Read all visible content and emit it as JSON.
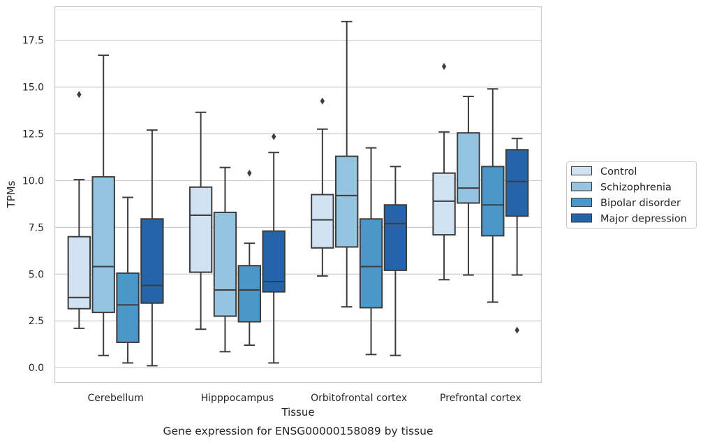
{
  "chart_data": {
    "type": "box",
    "title": "",
    "caption": "Gene expression for ENSG00000158089 by tissue",
    "xlabel": "Tissue",
    "ylabel": "TPMs",
    "ylim": [
      -0.8,
      19.3
    ],
    "yticks": [
      "0.0",
      "2.5",
      "5.0",
      "7.5",
      "10.0",
      "12.5",
      "15.0",
      "17.5"
    ],
    "ytick_values": [
      0,
      2.5,
      5,
      7.5,
      10,
      12.5,
      15,
      17.5
    ],
    "grid": "horizontal",
    "legend_position": "right",
    "categories": [
      "Cerebellum",
      "Hipppocampus",
      "Orbitofrontal cortex",
      "Prefrontal cortex"
    ],
    "series": [
      {
        "name": "Control",
        "color": "#d0e1f2",
        "boxes": [
          {
            "whislo": 2.1,
            "q1": 3.15,
            "med": 3.75,
            "q3": 7.0,
            "whishi": 10.05,
            "fliers": [
              14.6
            ]
          },
          {
            "whislo": 2.05,
            "q1": 5.1,
            "med": 8.15,
            "q3": 9.65,
            "whishi": 13.65,
            "fliers": []
          },
          {
            "whislo": 4.9,
            "q1": 6.4,
            "med": 7.9,
            "q3": 9.25,
            "whishi": 12.75,
            "fliers": [
              14.25
            ]
          },
          {
            "whislo": 4.7,
            "q1": 7.1,
            "med": 8.9,
            "q3": 10.4,
            "whishi": 12.6,
            "fliers": [
              16.1
            ]
          }
        ]
      },
      {
        "name": "Schizophrenia",
        "color": "#94c4df",
        "boxes": [
          {
            "whislo": 0.65,
            "q1": 2.95,
            "med": 5.4,
            "q3": 10.2,
            "whishi": 16.7,
            "fliers": []
          },
          {
            "whislo": 0.85,
            "q1": 2.75,
            "med": 4.15,
            "q3": 8.3,
            "whishi": 10.7,
            "fliers": []
          },
          {
            "whislo": 3.25,
            "q1": 6.45,
            "med": 9.2,
            "q3": 11.3,
            "whishi": 18.5,
            "fliers": []
          },
          {
            "whislo": 4.95,
            "q1": 8.8,
            "med": 9.6,
            "q3": 12.55,
            "whishi": 14.5,
            "fliers": []
          }
        ]
      },
      {
        "name": "Bipolar disorder",
        "color": "#4a98c9",
        "boxes": [
          {
            "whislo": 0.25,
            "q1": 1.35,
            "med": 3.35,
            "q3": 5.05,
            "whishi": 9.1,
            "fliers": []
          },
          {
            "whislo": 1.2,
            "q1": 2.45,
            "med": 4.15,
            "q3": 5.45,
            "whishi": 6.65,
            "fliers": [
              10.4
            ]
          },
          {
            "whislo": 0.7,
            "q1": 3.2,
            "med": 5.4,
            "q3": 7.95,
            "whishi": 11.75,
            "fliers": []
          },
          {
            "whislo": 3.5,
            "q1": 7.05,
            "med": 8.7,
            "q3": 10.75,
            "whishi": 14.9,
            "fliers": []
          }
        ]
      },
      {
        "name": "Major depression",
        "color": "#2464ab",
        "boxes": [
          {
            "whislo": 0.1,
            "q1": 3.45,
            "med": 4.4,
            "q3": 7.95,
            "whishi": 12.7,
            "fliers": []
          },
          {
            "whislo": 0.25,
            "q1": 4.05,
            "med": 4.6,
            "q3": 7.3,
            "whishi": 11.5,
            "fliers": [
              12.35
            ]
          },
          {
            "whislo": 0.65,
            "q1": 5.2,
            "med": 7.7,
            "q3": 8.7,
            "whishi": 10.75,
            "fliers": []
          },
          {
            "whislo": 4.95,
            "q1": 8.1,
            "med": 9.95,
            "q3": 11.65,
            "whishi": 12.25,
            "fliers": [
              2.0
            ]
          }
        ]
      }
    ]
  }
}
